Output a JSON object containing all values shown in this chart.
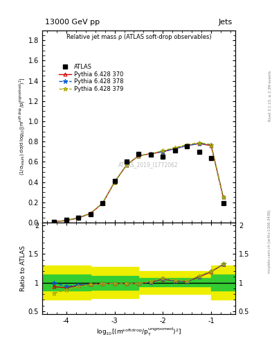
{
  "title_top": "13000 GeV pp",
  "title_right": "Jets",
  "plot_title": "Relative jet mass ρ (ATLAS soft-drop observables)",
  "watermark": "ATLAS_2019_I1772062",
  "right_label_top": "Rivet 3.1.10, ≥ 2.3M events",
  "right_label_bottom": "mcplots.cern.ch [arXiv:1306.3436]",
  "xlabel": "log$_{10}$[(m$^{\\mathrm{soft\\,drop}}$/p$_\\mathrm{T}^{\\mathrm{ungroomed}}$)$^2$]",
  "ylabel_main": "(1/σ$_{\\mathrm{resum}}$) dσ/d log$_{10}$[(m$^{\\mathrm{soft\\,drop}}$/p$_\\mathrm{T}^{\\mathrm{ungroomed}}$)$^2$]",
  "ylabel_ratio": "Ratio to ATLAS",
  "xlim": [
    -4.5,
    -0.5
  ],
  "ylim_main": [
    0,
    1.9
  ],
  "ylim_ratio": [
    0.45,
    2.05
  ],
  "yticks_main": [
    0.0,
    0.2,
    0.4,
    0.6,
    0.8,
    1.0,
    1.2,
    1.4,
    1.6,
    1.8
  ],
  "yticks_ratio": [
    0.5,
    1.0,
    1.5,
    2.0
  ],
  "x_ticks": [
    -4,
    -3,
    -2,
    -1
  ],
  "x_data": [
    -4.25,
    -4.0,
    -3.75,
    -3.5,
    -3.25,
    -3.0,
    -2.75,
    -2.5,
    -2.25,
    -2.0,
    -1.75,
    -1.5,
    -1.25,
    -1.0,
    -0.75
  ],
  "atlas_y": [
    0.01,
    0.025,
    0.05,
    0.08,
    0.19,
    0.41,
    0.6,
    0.68,
    0.67,
    0.65,
    0.71,
    0.75,
    0.7,
    0.64,
    0.19
  ],
  "pythia370_y": [
    0.008,
    0.02,
    0.045,
    0.09,
    0.19,
    0.4,
    0.57,
    0.66,
    0.68,
    0.7,
    0.73,
    0.76,
    0.78,
    0.76,
    0.25
  ],
  "pythia378_y": [
    0.008,
    0.022,
    0.048,
    0.09,
    0.19,
    0.4,
    0.57,
    0.66,
    0.68,
    0.7,
    0.73,
    0.76,
    0.78,
    0.77,
    0.25
  ],
  "pythia379_y": [
    0.008,
    0.022,
    0.048,
    0.092,
    0.19,
    0.4,
    0.57,
    0.66,
    0.68,
    0.71,
    0.74,
    0.77,
    0.79,
    0.77,
    0.25
  ],
  "ratio370_y": [
    0.93,
    0.91,
    0.95,
    0.97,
    0.98,
    0.99,
    0.98,
    0.99,
    1.01,
    1.06,
    1.03,
    1.02,
    1.1,
    1.19,
    1.32
  ],
  "ratio378_y": [
    1.0,
    0.93,
    0.96,
    0.97,
    0.99,
    0.99,
    0.98,
    0.99,
    1.01,
    1.07,
    1.03,
    1.02,
    1.11,
    1.2,
    1.32
  ],
  "ratio379_y": [
    0.82,
    0.87,
    0.93,
    0.97,
    0.98,
    0.99,
    0.98,
    0.99,
    1.02,
    1.08,
    1.04,
    1.03,
    1.12,
    1.2,
    1.33
  ],
  "band_x_edges": [
    -4.5,
    -3.5,
    -2.5,
    -1.0,
    -0.5
  ],
  "green_band_low": [
    0.86,
    0.88,
    0.94,
    0.86
  ],
  "green_band_high": [
    1.14,
    1.12,
    1.08,
    1.14
  ],
  "yellow_band_low": [
    0.7,
    0.73,
    0.8,
    0.7
  ],
  "yellow_band_high": [
    1.3,
    1.27,
    1.2,
    1.3
  ],
  "color_atlas": "#000000",
  "color_370": "#cc0000",
  "color_378": "#0055cc",
  "color_379": "#aaaa00",
  "color_green_band": "#33cc33",
  "color_yellow_band": "#eeee00",
  "legend_labels": [
    "ATLAS",
    "Pythia 6.428 370",
    "Pythia 6.428 378",
    "Pythia 6.428 379"
  ]
}
